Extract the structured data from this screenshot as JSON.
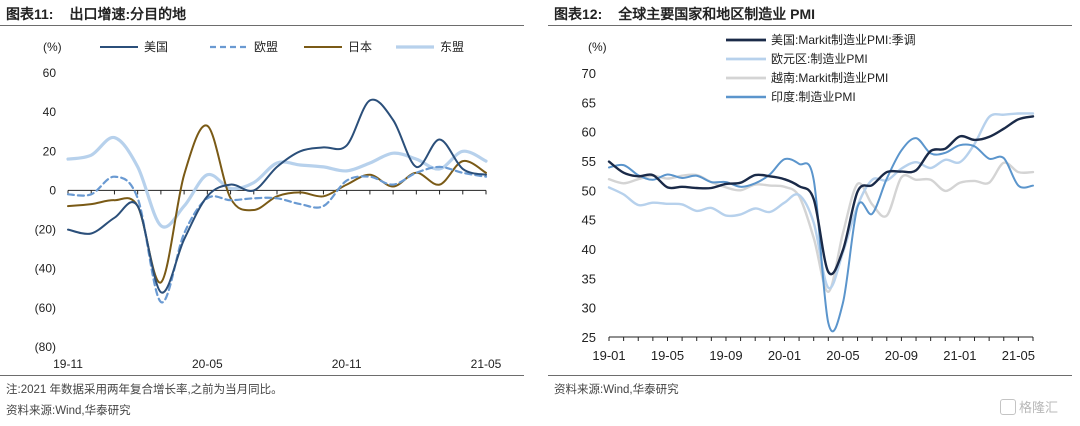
{
  "left": {
    "title_num": "图表11:",
    "title_text": "出口增速:分目的地",
    "notes": [
      "注:2021 年数据采用两年复合增长率,之前为当月同比。",
      "资料来源:Wind,华泰研究"
    ]
  },
  "right": {
    "title_num": "图表12:",
    "title_text": "全球主要国家和地区制造业 PMI",
    "notes": [
      "资料来源:Wind,华泰研究"
    ]
  },
  "watermark": "格隆汇",
  "chart_data": [
    {
      "type": "line",
      "unit_label": "(%)",
      "ylim": [
        -80,
        60
      ],
      "yticks": [
        60,
        40,
        20,
        0,
        -20,
        -40,
        -60,
        -80
      ],
      "ytick_labels": [
        "60",
        "40",
        "20",
        "0",
        "(20)",
        "(40)",
        "(60)",
        "(80)"
      ],
      "x_labels": [
        {
          "i": 0,
          "label": "19-11"
        },
        {
          "i": 6,
          "label": "20-05"
        },
        {
          "i": 12,
          "label": "20-11"
        },
        {
          "i": 18,
          "label": "21-05"
        }
      ],
      "x_count": 19,
      "series": [
        {
          "name": "美国",
          "color": "#2b4f7a",
          "dash": "",
          "width": 2,
          "values": [
            -20,
            -22,
            -14,
            -8,
            -52,
            -25,
            -3,
            3,
            0,
            12,
            20,
            22,
            23,
            46,
            36,
            12,
            26,
            11,
            8
          ]
        },
        {
          "name": "欧盟",
          "color": "#6a9ad2",
          "dash": "6,4",
          "width": 2.2,
          "values": [
            -2,
            -2,
            7,
            -4,
            -57,
            -22,
            -4,
            -5,
            -4,
            -4,
            -7,
            -8,
            5,
            7,
            3,
            9,
            12,
            9,
            7
          ]
        },
        {
          "name": "日本",
          "color": "#7a5a16",
          "dash": "",
          "width": 2,
          "values": [
            -8,
            -7,
            -5,
            -8,
            -47,
            8,
            33,
            -4,
            -10,
            -3,
            -1,
            -3,
            3,
            8,
            2,
            9,
            3,
            15,
            9
          ]
        },
        {
          "name": "东盟",
          "color": "#b7d1ec",
          "dash": "",
          "width": 3.2,
          "values": [
            16,
            18,
            27,
            12,
            -18,
            -8,
            8,
            1,
            4,
            14,
            13,
            12,
            10,
            14,
            19,
            16,
            11,
            20,
            15
          ]
        }
      ]
    },
    {
      "type": "line",
      "unit_label": "(%)",
      "ylim": [
        25,
        70
      ],
      "yticks": [
        70,
        65,
        60,
        55,
        50,
        45,
        40,
        35,
        30,
        25
      ],
      "x_labels": [
        {
          "i": 0,
          "label": "19-01"
        },
        {
          "i": 4,
          "label": "19-05"
        },
        {
          "i": 8,
          "label": "19-09"
        },
        {
          "i": 12,
          "label": "20-01"
        },
        {
          "i": 16,
          "label": "20-05"
        },
        {
          "i": 20,
          "label": "20-09"
        },
        {
          "i": 24,
          "label": "21-01"
        },
        {
          "i": 28,
          "label": "21-05"
        }
      ],
      "x_count": 30,
      "series": [
        {
          "name": "美国:Markit制造业PMI:季调",
          "color": "#1a2a48",
          "dash": "",
          "width": 2.4,
          "values": [
            54.9,
            53.0,
            52.4,
            52.6,
            50.5,
            50.6,
            50.4,
            50.4,
            51.1,
            51.3,
            52.6,
            52.4,
            51.9,
            50.7,
            48.5,
            36.1,
            39.8,
            49.8,
            50.9,
            53.1,
            53.2,
            53.4,
            56.7,
            57.1,
            59.2,
            58.6,
            59.1,
            60.5,
            62.1,
            62.6
          ]
        },
        {
          "name": "欧元区:制造业PMI",
          "color": "#b7d1ec",
          "dash": "",
          "width": 2.4,
          "values": [
            50.5,
            49.3,
            47.5,
            47.9,
            47.7,
            47.6,
            46.5,
            47.0,
            45.7,
            45.9,
            46.9,
            46.3,
            47.9,
            49.2,
            44.5,
            33.4,
            39.4,
            47.4,
            51.8,
            51.7,
            53.7,
            54.8,
            53.8,
            55.2,
            54.8,
            57.9,
            62.5,
            62.9,
            63.1,
            63.1
          ]
        },
        {
          "name": "越南:Markit制造业PMI",
          "color": "#d4d4d4",
          "dash": "",
          "width": 2.4,
          "values": [
            51.9,
            51.2,
            51.9,
            52.5,
            52.0,
            52.5,
            52.6,
            51.4,
            50.5,
            50.0,
            51.0,
            50.8,
            50.6,
            49.0,
            41.9,
            32.7,
            42.7,
            51.1,
            47.6,
            45.7,
            52.2,
            51.8,
            51.8,
            49.9,
            51.3,
            51.6,
            51.3,
            54.7,
            53.1,
            53.1
          ]
        },
        {
          "name": "印度:制造业PMI",
          "color": "#5b95cc",
          "dash": "",
          "width": 2,
          "values": [
            53.9,
            54.3,
            52.6,
            51.8,
            52.7,
            52.1,
            52.5,
            51.4,
            51.4,
            50.6,
            51.2,
            52.7,
            55.3,
            54.5,
            51.8,
            27.4,
            30.8,
            47.2,
            46.0,
            52.0,
            56.8,
            58.9,
            56.3,
            56.4,
            57.7,
            57.5,
            55.4,
            55.5,
            50.8,
            50.8
          ]
        }
      ]
    }
  ]
}
